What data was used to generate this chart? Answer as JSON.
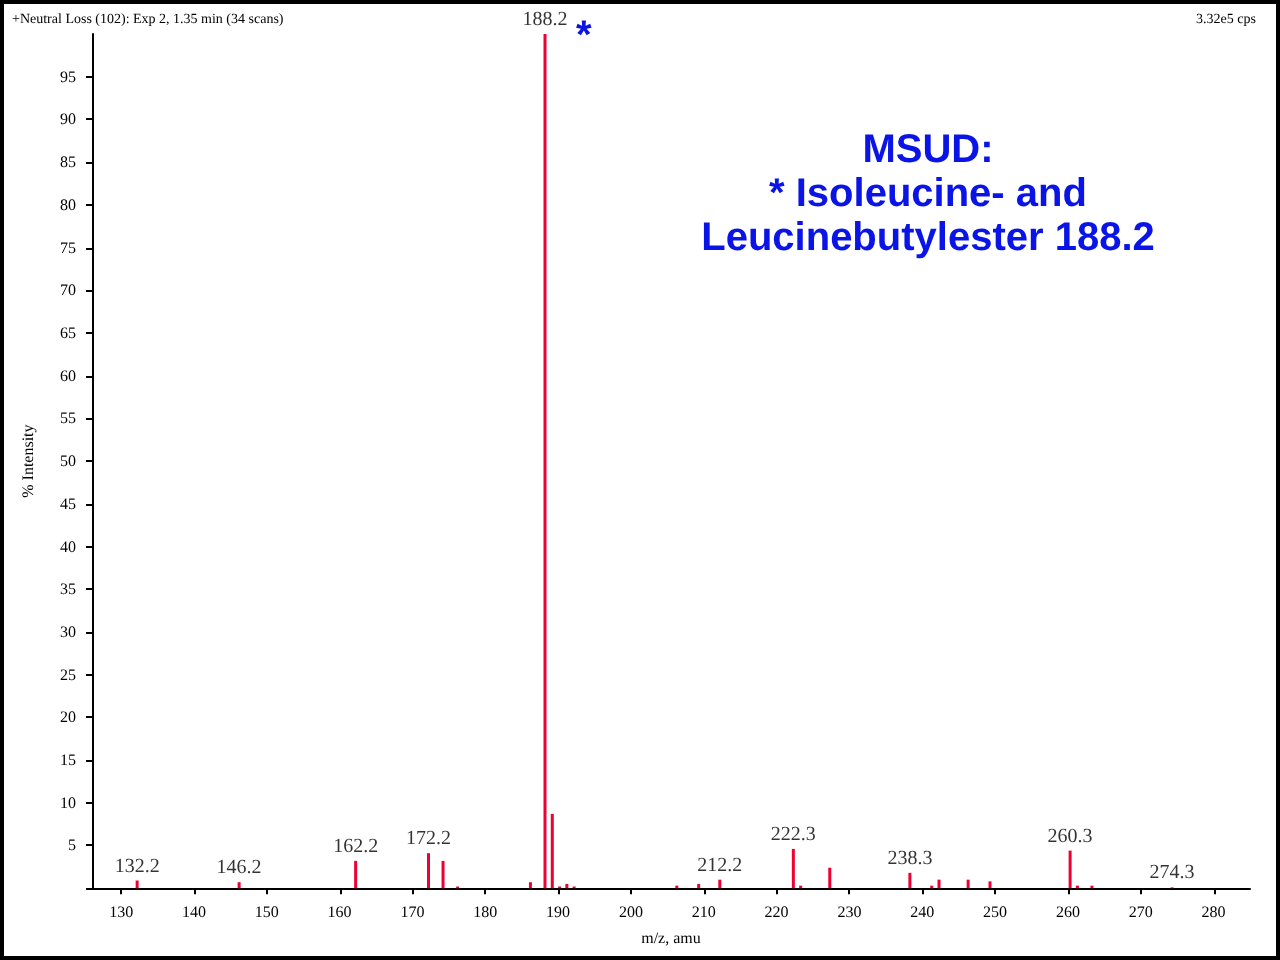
{
  "chart_data": {
    "type": "bar",
    "xlabel": "m/z, amu",
    "ylabel": "% Intensity",
    "x": [
      132.2,
      146.2,
      162.2,
      172.2,
      174.2,
      176.2,
      186.2,
      188.2,
      189.2,
      190.2,
      191.2,
      192.2,
      206.3,
      209.3,
      212.2,
      222.3,
      223.3,
      227.3,
      238.3,
      241.3,
      242.3,
      246.3,
      249.3,
      260.3,
      261.3,
      263.3,
      274.3
    ],
    "values": [
      0.9,
      0.7,
      3.2,
      4.1,
      3.2,
      0.2,
      0.7,
      100,
      8.7,
      0.2,
      0.5,
      0.2,
      0.3,
      0.5,
      1.0,
      4.6,
      0.3,
      2.4,
      1.8,
      0.3,
      1.0,
      1.0,
      0.8,
      4.4,
      0.3,
      0.3,
      0.1
    ],
    "color": "#ee0033",
    "xlim": [
      126,
      285
    ],
    "ylim": [
      0,
      100
    ],
    "xticks": [
      130,
      140,
      150,
      160,
      170,
      180,
      190,
      200,
      210,
      220,
      230,
      240,
      250,
      260,
      270,
      280
    ],
    "yticks": [
      {
        "value": 0,
        "label": null
      },
      5,
      10,
      15,
      20,
      25,
      30,
      35,
      40,
      45,
      50,
      55,
      60,
      65,
      70,
      75,
      80,
      85,
      90,
      95
    ],
    "grid": false,
    "annotations": [
      "+Neutral Loss (102): Exp 2, 1.35 min (34 scans)",
      "3.32e5 cps",
      "MSUD:\n* Isoleucine- and\nLeucinebutylester 188.2",
      "*",
      {
        "text": "132.2",
        "x": 132.2,
        "y": 0.9
      },
      {
        "text": "146.2",
        "x": 146.2,
        "y": 0.7
      },
      {
        "text": "162.2",
        "x": 162.2,
        "y": 3.2
      },
      {
        "text": "172.2",
        "x": 172.2,
        "y": 4.1
      },
      {
        "text": "188.2",
        "x": 188.2,
        "y": 100
      },
      {
        "text": "212.2",
        "x": 212.2,
        "y": 1.0
      },
      {
        "text": "222.3",
        "x": 222.3,
        "y": 4.6
      },
      {
        "text": "238.3",
        "x": 238.3,
        "y": 1.8
      },
      {
        "text": "260.3",
        "x": 260.3,
        "y": 4.4
      },
      {
        "text": "274.3",
        "x": 274.3,
        "y": 0.1
      }
    ]
  }
}
